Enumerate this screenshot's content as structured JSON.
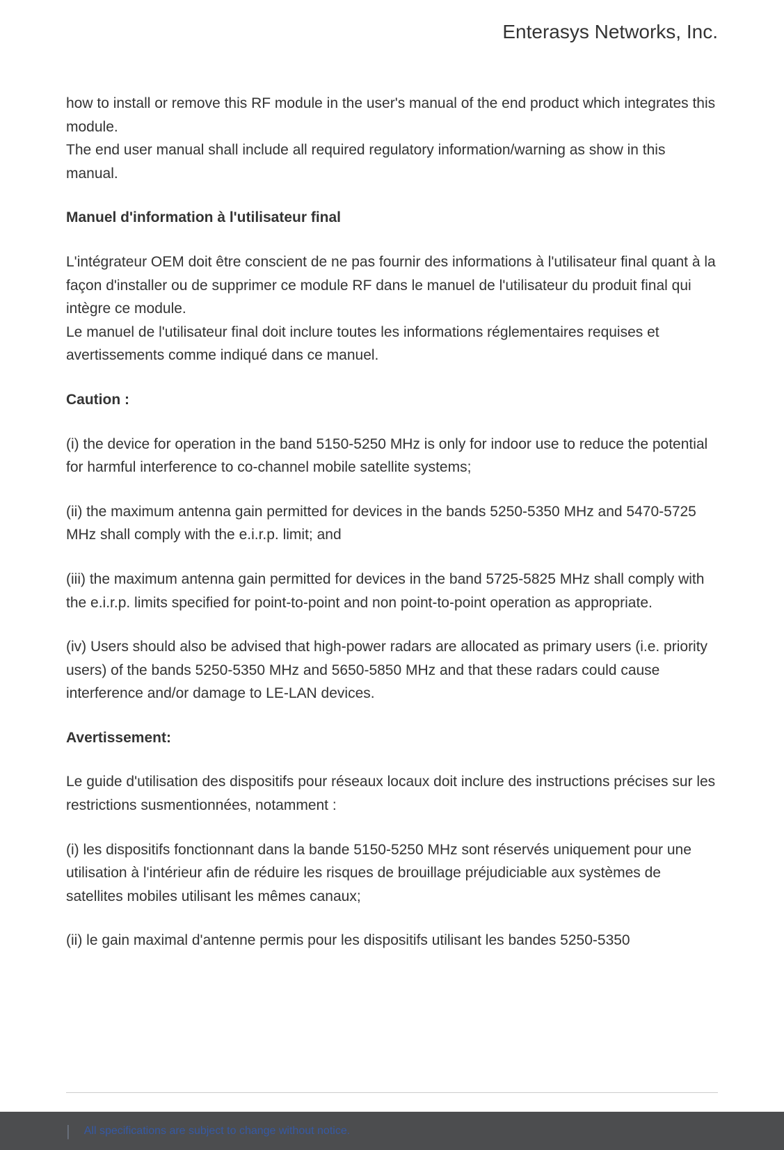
{
  "header": {
    "company": "Enterasys Networks, Inc."
  },
  "content": {
    "intro_para_1": "how to install or remove this RF module in the user's manual of the end product which integrates this module.",
    "intro_para_2": "The end user manual shall include all required regulatory information/warning as show in this manual.",
    "heading_1": "Manuel d'information à l'utilisateur final",
    "french_para_1": "L'intégrateur OEM doit être conscient de ne pas fournir des informations à l'utilisateur final quant à la façon d'installer ou de supprimer ce module RF dans le manuel de l'utilisateur du produit final qui intègre ce module.",
    "french_para_2": "Le manuel de l'utilisateur final doit inclure toutes les informations réglementaires requises et avertissements comme indiqué dans ce manuel.",
    "heading_2": "Caution :",
    "caution_1": "(i) the device for operation in the band 5150-5250 MHz is only for indoor use to reduce the potential for harmful interference to co-channel mobile satellite systems;",
    "caution_2": "(ii) the maximum antenna gain permitted for devices in the bands 5250-5350 MHz and 5470-5725 MHz shall comply with the e.i.r.p. limit; and",
    "caution_3": "(iii) the maximum antenna gain permitted for devices in the band 5725-5825 MHz shall comply with the e.i.r.p. limits specified for point-to-point and non point-to-point operation as appropriate.",
    "caution_4": "(iv) Users should also be advised that high-power radars are allocated as primary users (i.e. priority users) of the bands 5250-5350 MHz and 5650-5850 MHz and that these radars could cause interference and/or damage to LE-LAN devices.",
    "heading_3": "Avertissement:",
    "avert_1": "Le guide d'utilisation des dispositifs pour réseaux locaux doit inclure des instructions précises sur les restrictions susmentionnées, notamment :",
    "avert_2": "(i) les dispositifs fonctionnant dans la bande 5150-5250 MHz sont réservés uniquement pour une utilisation à l'intérieur afin de réduire les risques de brouillage préjudiciable aux systèmes de satellites mobiles utilisant les mêmes canaux;",
    "avert_3": "(ii) le gain maximal d'antenne permis pour les dispositifs utilisant les bandes 5250-5350"
  },
  "footer": {
    "text": "All specifications are subject to change without notice."
  },
  "colors": {
    "text": "#333333",
    "footer_bg": "#4c4d4f",
    "footer_text": "#3559a5",
    "line": "#cccccc"
  }
}
